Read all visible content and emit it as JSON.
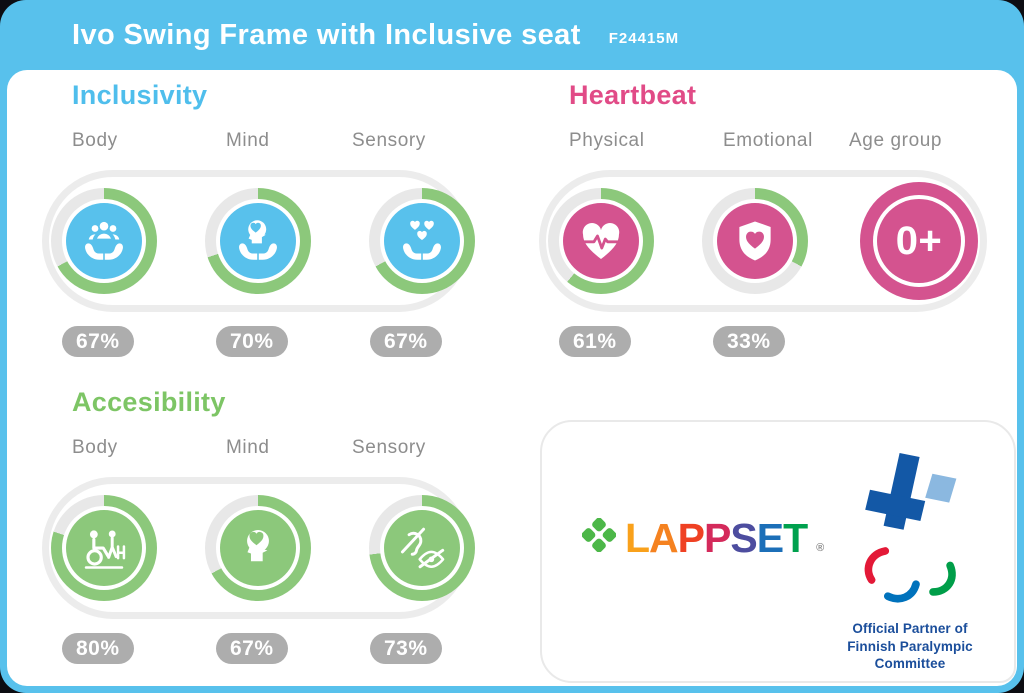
{
  "header": {
    "title": "Ivo Swing Frame with Inclusive seat",
    "code": "F24415M"
  },
  "sections": [
    {
      "id": "inclusivity",
      "title": "Inclusivity",
      "title_color": "#4FBEEC",
      "circle_color": "#58C1EC",
      "gauges": [
        {
          "label": "Body",
          "icon": "hands-holding-people",
          "percent": 67,
          "badge": "67%",
          "arc_color": "#8CC87B"
        },
        {
          "label": "Mind",
          "icon": "hands-holding-head",
          "percent": 70,
          "badge": "70%",
          "arc_color": "#8CC87B"
        },
        {
          "label": "Sensory",
          "icon": "hands-holding-hearts",
          "percent": 67,
          "badge": "67%",
          "arc_color": "#8CC87B"
        }
      ]
    },
    {
      "id": "heartbeat",
      "title": "Heartbeat",
      "title_color": "#E14B87",
      "circle_color": "#D4538F",
      "gauges": [
        {
          "label": "Physical",
          "icon": "heart-pulse",
          "percent": 61,
          "badge": "61%",
          "arc_color": "#8CC87B"
        },
        {
          "label": "Emotional",
          "icon": "shield-heart",
          "percent": 33,
          "badge": "33%",
          "arc_color": "#8CC87B"
        },
        {
          "label": "Age group",
          "icon": "age-text",
          "text": "0+",
          "percent": 100,
          "badge": null,
          "arc_color": "#D4538F",
          "large": true
        }
      ]
    },
    {
      "id": "accessibility",
      "title": "Accesibility",
      "title_color": "#7DC565",
      "circle_color": "#8CC87B",
      "gauges": [
        {
          "label": "Body",
          "icon": "wheelchair-walker",
          "percent": 80,
          "badge": "80%",
          "arc_color": "#8CC87B"
        },
        {
          "label": "Mind",
          "icon": "head-heart",
          "percent": 67,
          "badge": "67%",
          "arc_color": "#8CC87B"
        },
        {
          "label": "Sensory",
          "icon": "hearing-vision-impaired",
          "percent": 73,
          "badge": "73%",
          "arc_color": "#8CC87B"
        }
      ]
    }
  ],
  "chart_data": [
    {
      "type": "pie",
      "style": "donut-gauge",
      "title": "Inclusivity",
      "categories": [
        "Body",
        "Mind",
        "Sensory"
      ],
      "values": [
        67,
        70,
        67
      ],
      "unit": "%",
      "arc_color": "#8CC87B",
      "track_color": "#E8E8E8"
    },
    {
      "type": "pie",
      "style": "donut-gauge",
      "title": "Heartbeat",
      "categories": [
        "Physical",
        "Emotional",
        "Age group"
      ],
      "values": [
        61,
        33,
        null
      ],
      "value_labels": [
        "61%",
        "33%",
        "0+"
      ],
      "unit": "%",
      "arc_color": "#8CC87B",
      "track_color": "#E8E8E8"
    },
    {
      "type": "pie",
      "style": "donut-gauge",
      "title": "Accesibility",
      "categories": [
        "Body",
        "Mind",
        "Sensory"
      ],
      "values": [
        80,
        67,
        73
      ],
      "unit": "%",
      "arc_color": "#8CC87B",
      "track_color": "#E8E8E8"
    }
  ],
  "partner": {
    "lappset": {
      "text": "LAPPSET",
      "registered": "®",
      "icon_color": "#4CB748",
      "letter_colors": [
        "#F9A11B",
        "#F58220",
        "#EF4123",
        "#D42A5B",
        "#4D4D9F",
        "#1C6FB8",
        "#00A14E"
      ]
    },
    "paralympic": {
      "line1": "Official Partner of",
      "line2": "Finnish Paralympic",
      "line3": "Committee",
      "text_color": "#1B4E9B",
      "dark_blue": "#1358A6",
      "light_blue": "#8BB8E0",
      "agito_red": "#E31937",
      "agito_blue": "#0072BC",
      "agito_green": "#009E49"
    }
  },
  "colors": {
    "page_blue": "#58C1EC",
    "arc_green": "#8CC87B",
    "pink": "#D4538F",
    "track": "#E8E8E8",
    "capsule": "#ECECEC",
    "badge_bg": "#ADADAD",
    "label_gray": "#8D8D8D",
    "card_border": "#E9E9E9"
  }
}
